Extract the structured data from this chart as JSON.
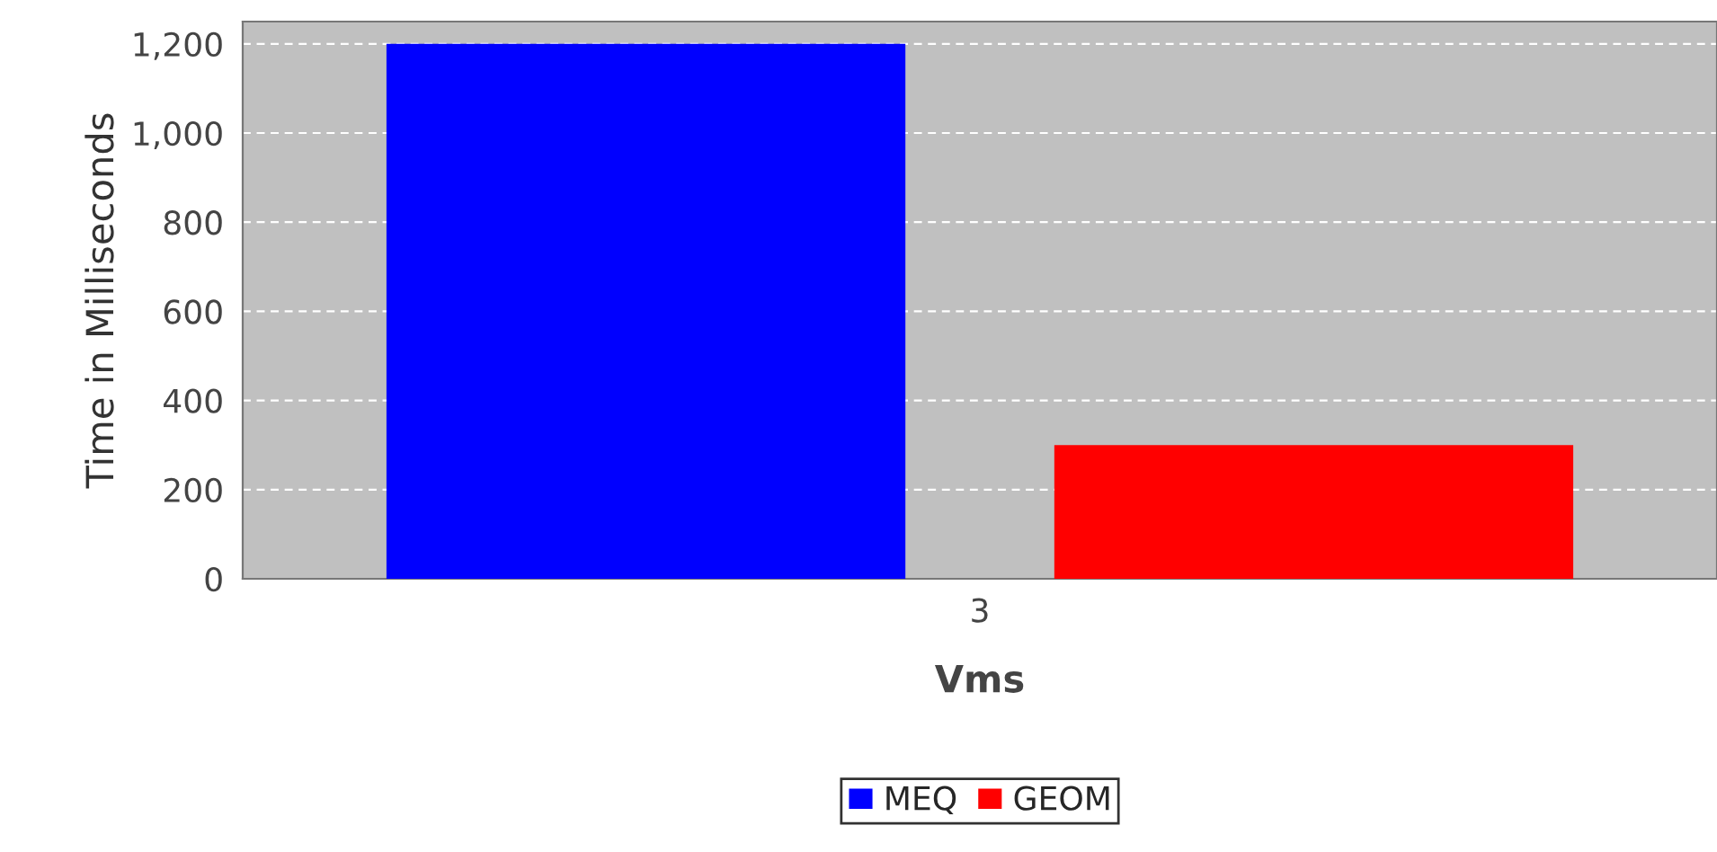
{
  "chart_data": {
    "type": "bar",
    "xlabel": "Vms",
    "ylabel": "Time in Milliseconds",
    "categories": [
      "3"
    ],
    "series": [
      {
        "name": "MEQ",
        "color": "#0000ff",
        "values": [
          1200
        ]
      },
      {
        "name": "GEOM",
        "color": "#ff0000",
        "values": [
          300
        ]
      }
    ],
    "ylim": [
      0,
      1250
    ],
    "yticks": [
      0,
      {
        "value": 200,
        "label": "200"
      },
      {
        "value": 400,
        "label": "400"
      },
      {
        "value": 600,
        "label": "600"
      },
      {
        "value": 800,
        "label": "800"
      },
      {
        "value": 1000,
        "label": "1,000"
      },
      {
        "value": 1200,
        "label": "1,200"
      }
    ],
    "grid": "y",
    "legend": "bottom"
  }
}
